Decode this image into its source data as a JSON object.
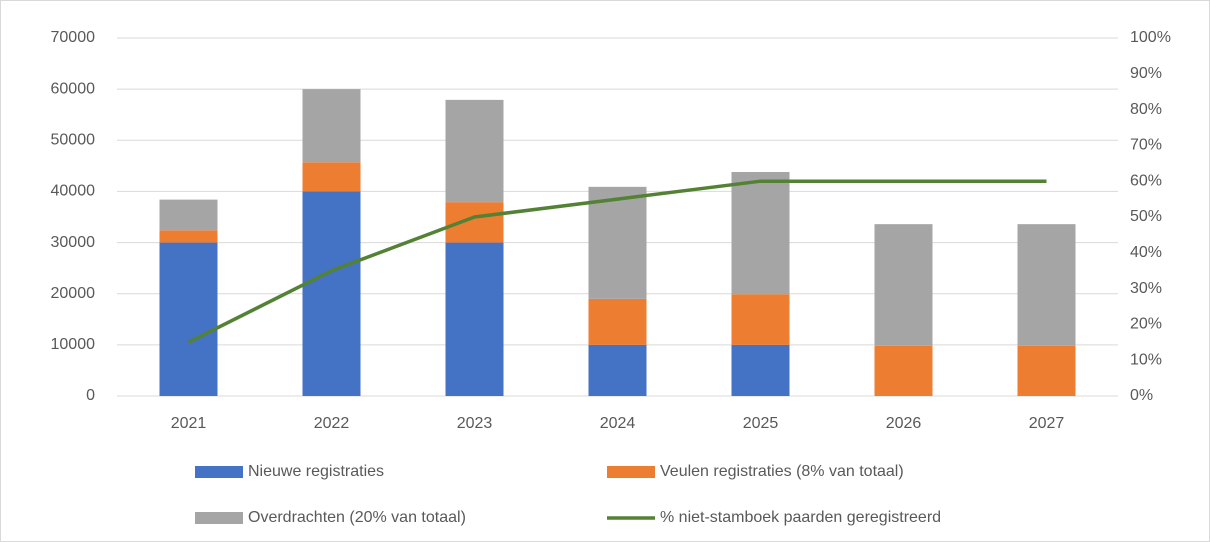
{
  "chart_data": {
    "type": "bar",
    "stacked": true,
    "categories": [
      "2021",
      "2022",
      "2023",
      "2024",
      "2025",
      "2026",
      "2027"
    ],
    "series": [
      {
        "name": "Nieuwe registraties",
        "color": "#4472c4",
        "values": [
          30000,
          40000,
          30000,
          10000,
          10000,
          0,
          0
        ]
      },
      {
        "name": "Veulen registraties (8% van totaal)",
        "color": "#ed7d31",
        "values": [
          2400,
          5700,
          7900,
          9000,
          9900,
          9800,
          9800
        ]
      },
      {
        "name": "Overdrachten (20% van totaal)",
        "color": "#a5a5a5",
        "values": [
          6000,
          14300,
          20000,
          21900,
          23900,
          23800,
          23800
        ]
      },
      {
        "name": "% niet-stamboek paarden geregistreerd",
        "color": "#548235",
        "type": "line",
        "axis": "y2",
        "values": [
          15,
          35,
          50,
          55,
          60,
          60,
          60
        ]
      }
    ],
    "ylim": [
      0,
      70000
    ],
    "yticks": [
      0,
      10000,
      20000,
      30000,
      40000,
      50000,
      60000,
      70000
    ],
    "y2lim": [
      0,
      100
    ],
    "y2ticks": [
      {
        "value": 0,
        "label": "0%"
      },
      {
        "value": 10,
        "label": "10%"
      },
      {
        "value": 20,
        "label": "20%"
      },
      {
        "value": 30,
        "label": "30%"
      },
      {
        "value": 40,
        "label": "40%"
      },
      {
        "value": 50,
        "label": "50%"
      },
      {
        "value": 60,
        "label": "60%"
      },
      {
        "value": 70,
        "label": "70%"
      },
      {
        "value": 80,
        "label": "80%"
      },
      {
        "value": 90,
        "label": "90%"
      },
      {
        "value": 100,
        "label": "100%"
      }
    ],
    "grid": true,
    "legend": "bottom"
  }
}
